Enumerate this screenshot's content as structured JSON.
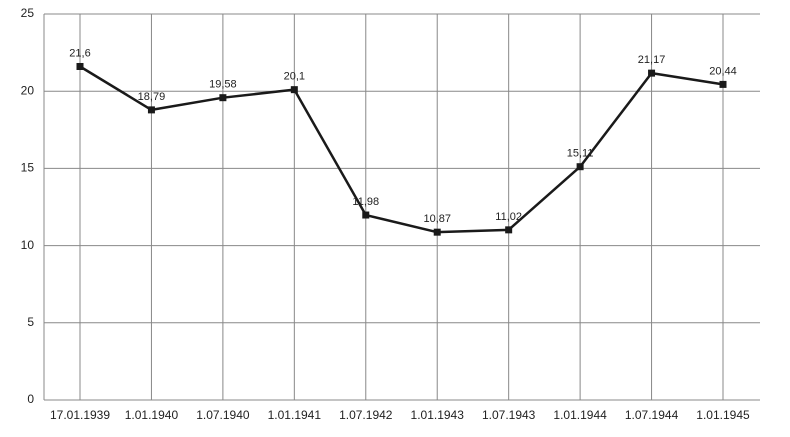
{
  "chart_data": {
    "type": "line",
    "categories": [
      "17.01.1939",
      "1.01.1940",
      "1.07.1940",
      "1.01.1941",
      "1.07.1942",
      "1.01.1943",
      "1.07.1943",
      "1.01.1944",
      "1.07.1944",
      "1.01.1945"
    ],
    "series": [
      {
        "color": "#1a1a1a",
        "values": [
          21.6,
          18.79,
          19.58,
          20.1,
          11.98,
          10.87,
          11.02,
          15.11,
          21.17,
          20.44
        ],
        "value_labels": [
          "21,6",
          "18,79",
          "19,58",
          "20,1",
          "11,98",
          "10,87",
          "11,02",
          "15,11",
          "21,17",
          "20,44"
        ]
      }
    ],
    "ylim": [
      0,
      25
    ],
    "yticks": [
      0,
      5,
      10,
      15,
      20,
      25
    ],
    "grid": true
  }
}
